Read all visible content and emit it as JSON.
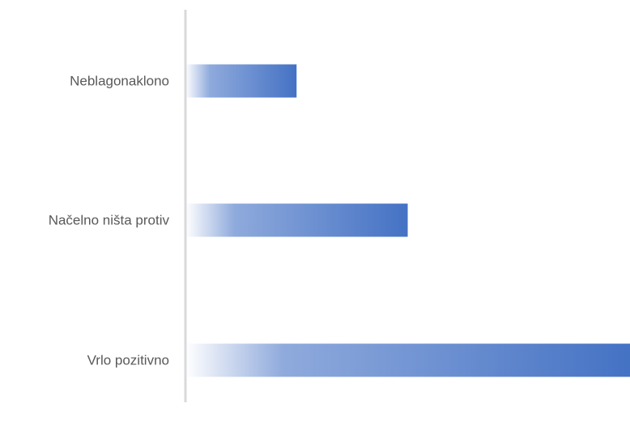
{
  "chart_data": {
    "type": "bar",
    "orientation": "horizontal",
    "categories": [
      "Neblagonaklono",
      "Načelno ništa protiv",
      "Vrlo pozitivno"
    ],
    "values": [
      20,
      40,
      80
    ],
    "xlim": [
      0,
      80
    ],
    "title": "",
    "xlabel": "",
    "ylabel": "",
    "grid": false,
    "legend": "none",
    "colors": {
      "bar_start": "#FFFFFF",
      "bar_mid": "#8FAADC",
      "bar_end": "#4472C4",
      "axis": "#D9D9D9",
      "label": "#595959"
    }
  }
}
